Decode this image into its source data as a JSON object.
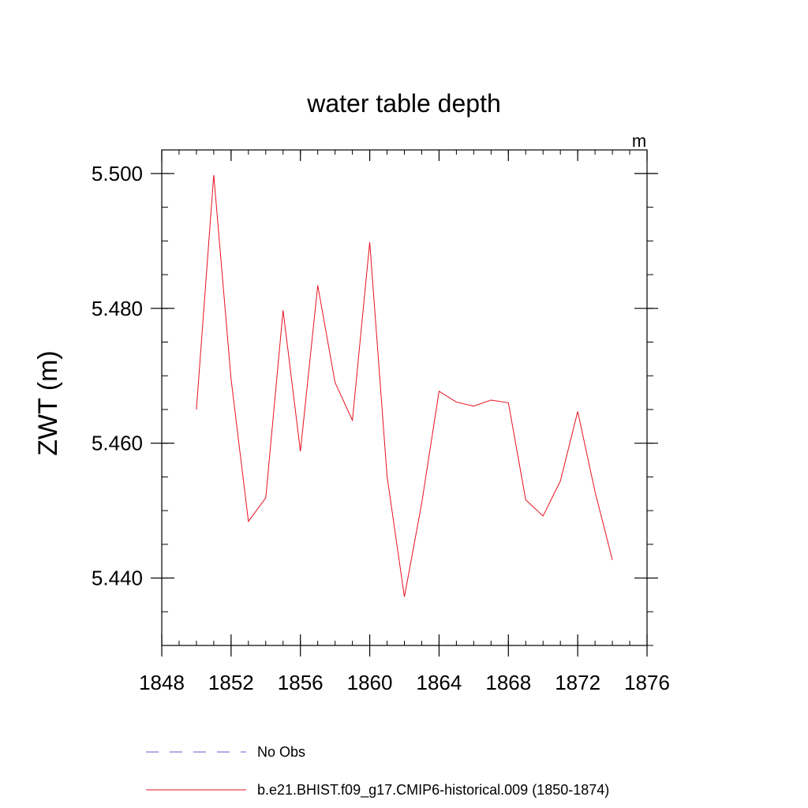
{
  "chart_data": {
    "type": "line",
    "title": "water table depth",
    "units_label": "m",
    "xlabel": "",
    "ylabel": "ZWT  (m)",
    "xlim": [
      1848,
      1876
    ],
    "ylim": [
      5.43,
      5.5035
    ],
    "x_ticks": [
      1848,
      1852,
      1856,
      1860,
      1864,
      1868,
      1872,
      1876
    ],
    "x_tick_labels": [
      "1848",
      "1852",
      "1856",
      "1860",
      "1864",
      "1868",
      "1872",
      "1876"
    ],
    "y_ticks": [
      5.44,
      5.46,
      5.48,
      5.5
    ],
    "y_tick_labels": [
      "5.440",
      "5.460",
      "5.480",
      "5.500"
    ],
    "y_minor_step": 0.005,
    "x_minor_step": 1,
    "series": [
      {
        "name": "b.e21.BHIST.f09_g17.CMIP6-historical.009 (1850-1874)",
        "color": "#e8101e",
        "style": "solid",
        "x": [
          1850,
          1851,
          1852,
          1853,
          1854,
          1855,
          1856,
          1857,
          1858,
          1859,
          1860,
          1861,
          1862,
          1863,
          1864,
          1865,
          1866,
          1867,
          1868,
          1869,
          1870,
          1871,
          1872,
          1873,
          1874
        ],
        "values": [
          5.465,
          5.4998,
          5.4695,
          5.4484,
          5.4519,
          5.4797,
          5.4588,
          5.4834,
          5.469,
          5.4634,
          5.4898,
          5.4551,
          5.4372,
          5.4511,
          5.4677,
          5.4661,
          5.4655,
          5.4664,
          5.466,
          5.4516,
          5.4492,
          5.4544,
          5.4647,
          5.4528,
          5.4427
        ]
      }
    ],
    "legend": [
      {
        "label": "No Obs",
        "color": "#6a5acd",
        "style": "dashed"
      },
      {
        "label": "b.e21.BHIST.f09_g17.CMIP6-historical.009 (1850-1874)",
        "color": "#e8101e",
        "style": "solid"
      }
    ]
  }
}
